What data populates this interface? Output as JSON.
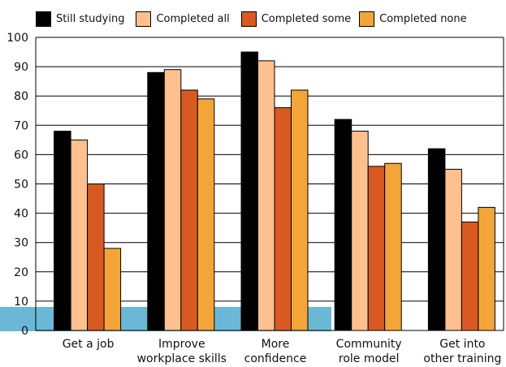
{
  "chart_data": {
    "type": "bar",
    "categories": [
      [
        "Get a job"
      ],
      [
        "Improve",
        "workplace skills"
      ],
      [
        "More",
        "confidence"
      ],
      [
        "Community",
        "role model"
      ],
      [
        "Get into",
        "other training"
      ]
    ],
    "series": [
      {
        "name": "Still studying",
        "color": "#000000",
        "values": [
          68,
          88,
          95,
          72,
          62
        ]
      },
      {
        "name": "Completed all",
        "color": "#fdc08e",
        "values": [
          65,
          89,
          92,
          68,
          55
        ]
      },
      {
        "name": "Completed some",
        "color": "#d85a22",
        "values": [
          50,
          82,
          76,
          56,
          37
        ]
      },
      {
        "name": "Completed none",
        "color": "#f4a53a",
        "values": [
          28,
          79,
          82,
          57,
          42
        ]
      }
    ],
    "ylim": [
      0,
      100
    ],
    "yticks": [
      0,
      10,
      20,
      30,
      40,
      50,
      60,
      70,
      80,
      90,
      100
    ],
    "grid": true,
    "legend_position": "top",
    "baseline_band_color": "#6bb8d6"
  }
}
